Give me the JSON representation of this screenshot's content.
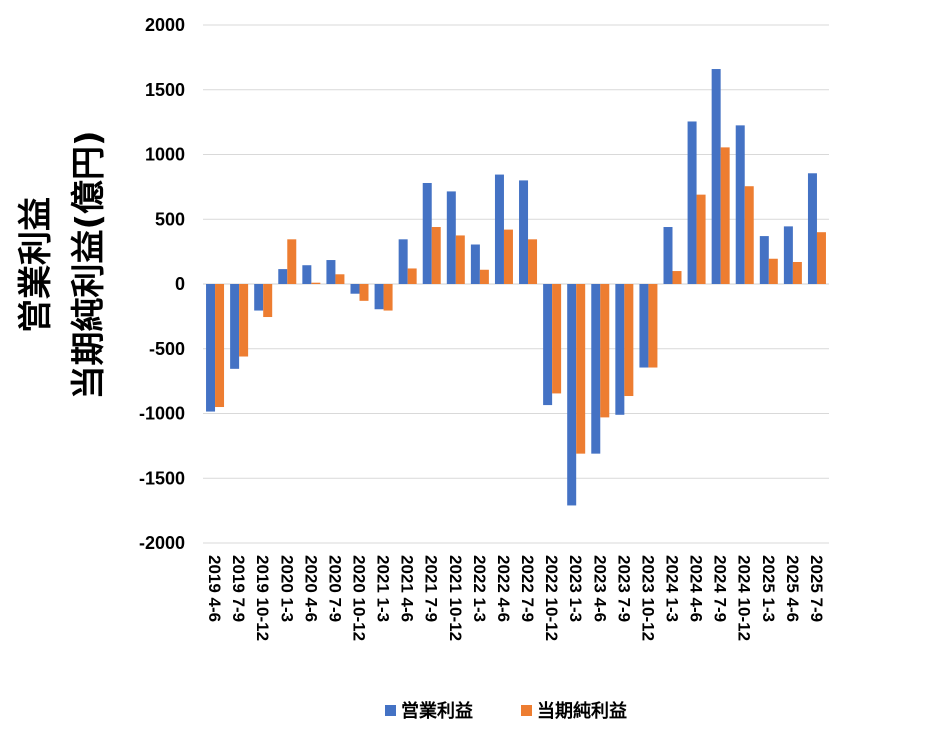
{
  "chart_data": {
    "type": "bar",
    "ylabel_lines": [
      "営業利益",
      "当期純利益(億円)"
    ],
    "ylim": [
      -2000,
      2000
    ],
    "yticks": [
      "2000",
      "1500",
      "1000",
      "500",
      "0",
      "-500",
      "-1000",
      "-1500",
      "-2000"
    ],
    "ytick_values": [
      2000,
      1500,
      1000,
      500,
      0,
      -500,
      -1000,
      -1500,
      -2000
    ],
    "grid": true,
    "legend_position": "bottom",
    "categories": [
      "2019 4-6",
      "2019 7-9",
      "2019 10-12",
      "2020 1-3",
      "2020 4-6",
      "2020 7-9",
      "2020 10-12",
      "2021 1-3",
      "2021 4-6",
      "2021 7-9",
      "2021 10-12",
      "2022 1-3",
      "2022 4-6",
      "2022 7-9",
      "2022 10-12",
      "2023 1-3",
      "2023 4-6",
      "2023 7-9",
      "2023 10-12",
      "2024 1-3",
      "2024 4-6",
      "2024 7-9",
      "2024 10-12",
      "2025 1-3",
      "2025 4-6",
      "2025 7-9"
    ],
    "series": [
      {
        "name": "営業利益",
        "color": "#4472C4",
        "values": [
          -985,
          -655,
          -205,
          115,
          145,
          185,
          -75,
          -195,
          345,
          780,
          715,
          305,
          845,
          800,
          -935,
          -1710,
          -1310,
          -1010,
          -645,
          440,
          1255,
          1660,
          1225,
          370,
          445,
          855
        ]
      },
      {
        "name": "当期純利益",
        "color": "#ED7D31",
        "values": [
          -950,
          -560,
          -255,
          345,
          10,
          75,
          -130,
          -205,
          120,
          440,
          375,
          110,
          420,
          345,
          -845,
          -1310,
          -1030,
          -865,
          -645,
          100,
          690,
          1055,
          755,
          195,
          170,
          400
        ]
      }
    ]
  }
}
